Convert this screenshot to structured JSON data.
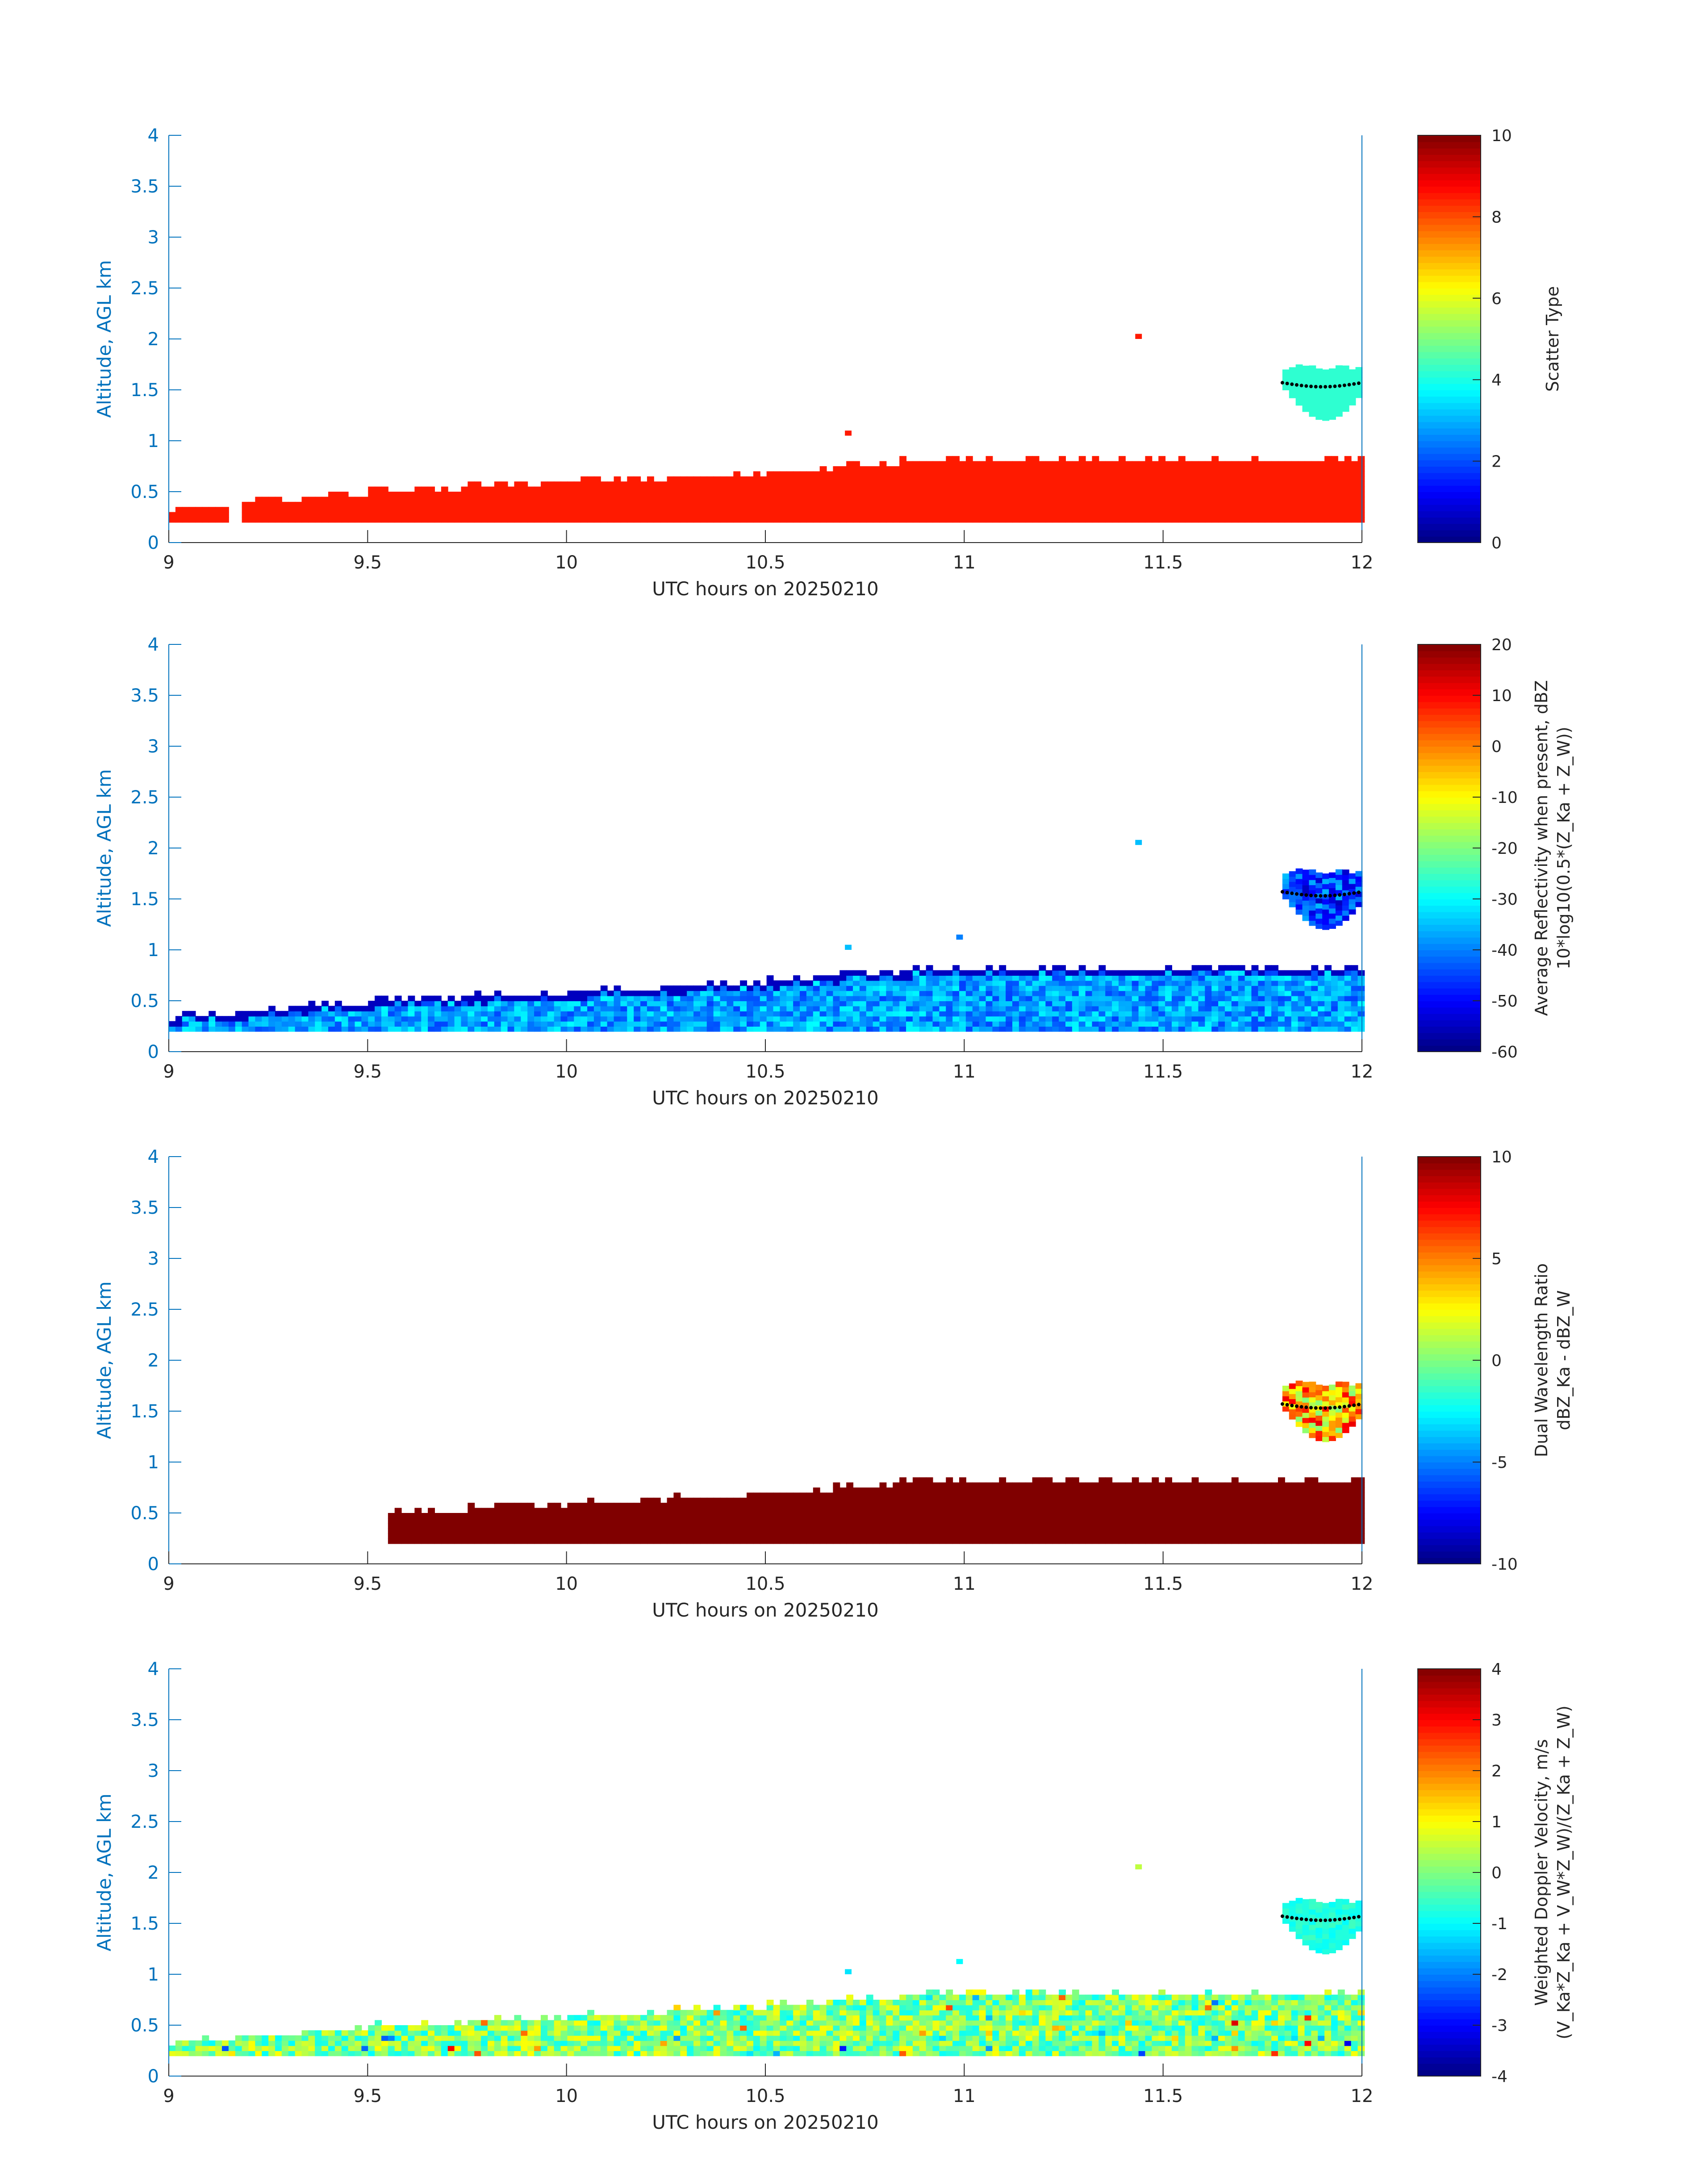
{
  "chart_data": [
    {
      "type": "heatmap",
      "title": "",
      "xlabel": "UTC hours on 20250210",
      "ylabel": "Altitude, AGL km",
      "xlim": [
        9,
        12
      ],
      "ylim": [
        0,
        4
      ],
      "x_ticks": [
        "9",
        "9.5",
        "10",
        "10.5",
        "11",
        "11.5",
        "12"
      ],
      "y_ticks": [
        "0",
        "0.5",
        "1",
        "1.5",
        "2",
        "2.5",
        "3",
        "3.5",
        "4"
      ],
      "colorbar": {
        "label": "Scatter Type",
        "sublabel": "",
        "min": 0,
        "max": 10,
        "ticks": [
          "0",
          "2",
          "4",
          "6",
          "8",
          "10"
        ]
      },
      "data_summary": {
        "layer_value": 8.5,
        "layer_top_km": [
          [
            9.0,
            0.3
          ],
          [
            9.5,
            0.45
          ],
          [
            10.0,
            0.55
          ],
          [
            10.5,
            0.65
          ],
          [
            11.0,
            0.8
          ],
          [
            11.5,
            0.8
          ],
          [
            12.0,
            0.8
          ]
        ],
        "layer_base_km": 0.2,
        "cloud_value": 4.2,
        "cloud_region": {
          "x": [
            11.8,
            12.0
          ],
          "y_km": [
            1.2,
            1.7
          ]
        },
        "isolated_points": [
          {
            "x": 10.7,
            "y": 1.05,
            "v": 8.5
          },
          {
            "x": 11.43,
            "y": 2.0,
            "v": 8.5
          }
        ]
      }
    },
    {
      "type": "heatmap",
      "title": "",
      "xlabel": "UTC hours on 20250210",
      "ylabel": "Altitude, AGL km",
      "xlim": [
        9,
        12
      ],
      "ylim": [
        0,
        4
      ],
      "x_ticks": [
        "9",
        "9.5",
        "10",
        "10.5",
        "11",
        "11.5",
        "12"
      ],
      "y_ticks": [
        "0",
        "0.5",
        "1",
        "1.5",
        "2",
        "2.5",
        "3",
        "3.5",
        "4"
      ],
      "colorbar": {
        "label": "Average Reflectivity when present, dBZ",
        "sublabel": "10*log10(0.5*(Z_Ka + Z_W))",
        "min": -60,
        "max": 20,
        "ticks": [
          "-60",
          "-50",
          "-40",
          "-30",
          "-20",
          "-10",
          "0",
          "10",
          "20"
        ]
      },
      "data_summary": {
        "layer_value_range": [
          -45,
          -30
        ],
        "layer_top_value": -55,
        "cloud_value_range": [
          -55,
          -35
        ],
        "cloud_region": {
          "x": [
            11.8,
            12.0
          ],
          "y_km": [
            1.2,
            1.75
          ]
        },
        "isolated_points": [
          {
            "x": 10.7,
            "y": 1.0,
            "v": -35
          },
          {
            "x": 10.98,
            "y": 1.1,
            "v": -40
          },
          {
            "x": 11.43,
            "y": 2.03,
            "v": -35
          }
        ]
      }
    },
    {
      "type": "heatmap",
      "title": "",
      "xlabel": "UTC hours on 20250210",
      "ylabel": "Altitude, AGL km",
      "xlim": [
        9,
        12
      ],
      "ylim": [
        0,
        4
      ],
      "x_ticks": [
        "9",
        "9.5",
        "10",
        "10.5",
        "11",
        "11.5",
        "12"
      ],
      "y_ticks": [
        "0",
        "0.5",
        "1",
        "1.5",
        "2",
        "2.5",
        "3",
        "3.5",
        "4"
      ],
      "colorbar": {
        "label": "Dual Wavelength Ratio",
        "sublabel": "dBZ_Ka - dBZ_W",
        "min": -10,
        "max": 10,
        "ticks": [
          "-10",
          "-5",
          "0",
          "5",
          "10"
        ]
      },
      "data_summary": {
        "layer_value": 10,
        "layer_start_x": 9.55,
        "cloud_value_range": [
          0,
          8
        ],
        "cloud_region": {
          "x": [
            11.8,
            12.0
          ],
          "y_km": [
            1.2,
            1.75
          ]
        }
      }
    },
    {
      "type": "heatmap",
      "title": "",
      "xlabel": "UTC hours on 20250210",
      "ylabel": "Altitude, AGL km",
      "xlim": [
        9,
        12
      ],
      "ylim": [
        0,
        4
      ],
      "x_ticks": [
        "9",
        "9.5",
        "10",
        "10.5",
        "11",
        "11.5",
        "12"
      ],
      "y_ticks": [
        "0",
        "0.5",
        "1",
        "1.5",
        "2",
        "2.5",
        "3",
        "3.5",
        "4"
      ],
      "colorbar": {
        "label": "Weighted Doppler Velocity, m/s",
        "sublabel": "(V_Ka*Z_Ka + V_W*Z_W)/(Z_Ka + Z_W)",
        "min": -4,
        "max": 4,
        "ticks": [
          "-4",
          "-3",
          "-2",
          "-1",
          "0",
          "1",
          "2",
          "3",
          "4"
        ]
      },
      "data_summary": {
        "layer_value_range": [
          -1,
          1
        ],
        "cloud_value_range": [
          -1,
          -0.5
        ],
        "cloud_region": {
          "x": [
            11.8,
            12.0
          ],
          "y_km": [
            1.2,
            1.7
          ]
        },
        "isolated_points": [
          {
            "x": 10.7,
            "y": 1.0,
            "v": -1.2
          },
          {
            "x": 10.98,
            "y": 1.1,
            "v": -1.0
          },
          {
            "x": 11.43,
            "y": 2.03,
            "v": 0.5
          }
        ]
      }
    }
  ]
}
